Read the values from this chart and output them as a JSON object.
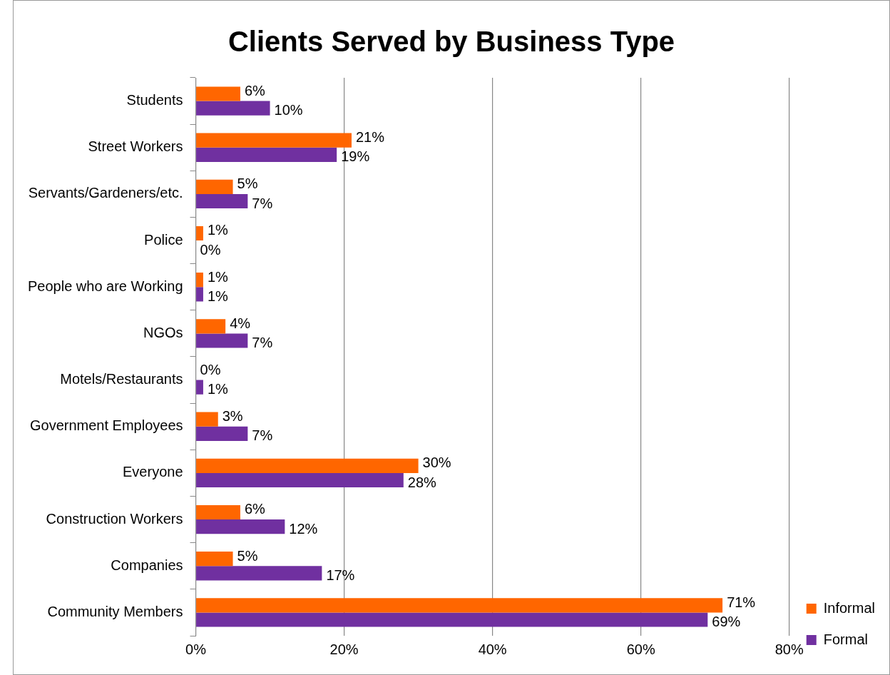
{
  "chart_data": {
    "type": "bar",
    "orientation": "horizontal",
    "title": "Clients Served by Business Type",
    "categories": [
      "Students",
      "Street Workers",
      "Servants/Gardeners/etc.",
      "Police",
      "People who are Working",
      "NGOs",
      "Motels/Restaurants",
      "Government Employees",
      "Everyone",
      "Construction Workers",
      "Companies",
      "Community Members"
    ],
    "series": [
      {
        "name": "Informal",
        "color": "#ff6600",
        "values": [
          6,
          21,
          5,
          1,
          1,
          4,
          0,
          3,
          30,
          6,
          5,
          71
        ],
        "value_labels": [
          "6%",
          "21%",
          "5%",
          "1%",
          "1%",
          "4%",
          "0%",
          "3%",
          "30%",
          "6%",
          "5%",
          "71%"
        ]
      },
      {
        "name": "Formal",
        "color": "#7030a0",
        "values": [
          10,
          19,
          7,
          0,
          1,
          7,
          1,
          7,
          28,
          12,
          17,
          69
        ],
        "value_labels": [
          "10%",
          "19%",
          "7%",
          "0%",
          "1%",
          "7%",
          "1%",
          "7%",
          "28%",
          "12%",
          "17%",
          "69%"
        ]
      }
    ],
    "xlim": [
      0,
      80
    ],
    "xticks": [
      {
        "value": 0,
        "label": "0%"
      },
      {
        "value": 20,
        "label": "20%"
      },
      {
        "value": 40,
        "label": "40%"
      },
      {
        "value": 60,
        "label": "60%"
      },
      {
        "value": 80,
        "label": "80%"
      }
    ],
    "grid": "x",
    "legend": "right"
  }
}
